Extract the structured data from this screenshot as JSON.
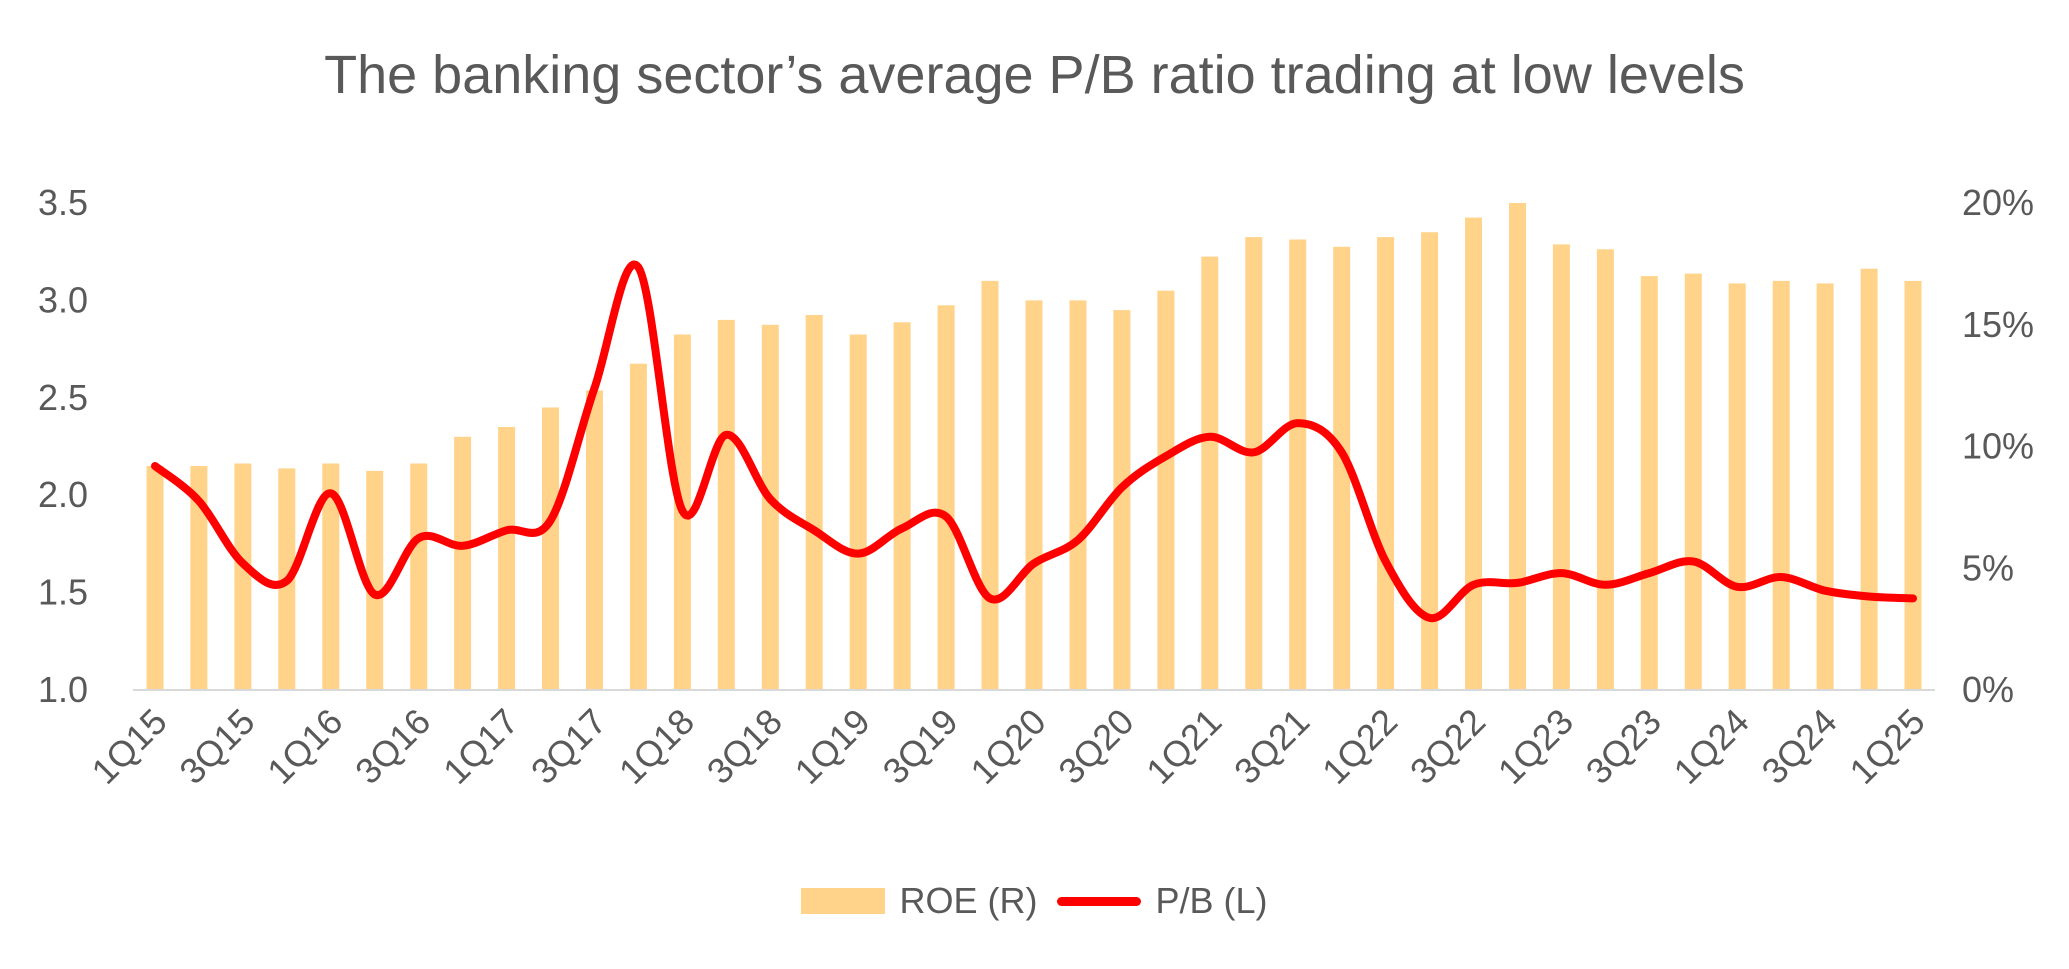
{
  "chart_data": {
    "type": "bar+line",
    "title": "The banking sector’s average P/B ratio trading at low levels",
    "categories": [
      "1Q15",
      "2Q15",
      "3Q15",
      "4Q15",
      "1Q16",
      "2Q16",
      "3Q16",
      "4Q16",
      "1Q17",
      "2Q17",
      "3Q17",
      "4Q17",
      "1Q18",
      "2Q18",
      "3Q18",
      "4Q18",
      "1Q19",
      "2Q19",
      "3Q19",
      "4Q19",
      "1Q20",
      "2Q20",
      "3Q20",
      "4Q20",
      "1Q21",
      "2Q21",
      "3Q21",
      "4Q21",
      "1Q22",
      "2Q22",
      "3Q22",
      "4Q22",
      "1Q23",
      "2Q23",
      "3Q23",
      "4Q23",
      "1Q24",
      "2Q24",
      "3Q24",
      "4Q24",
      "1Q25"
    ],
    "x_tick_labels": [
      "1Q15",
      "3Q15",
      "1Q16",
      "3Q16",
      "1Q17",
      "3Q17",
      "1Q18",
      "3Q18",
      "1Q19",
      "3Q19",
      "1Q20",
      "3Q20",
      "1Q21",
      "3Q21",
      "1Q22",
      "3Q22",
      "1Q23",
      "3Q23",
      "1Q24",
      "3Q24",
      "1Q25"
    ],
    "series": [
      {
        "name": "ROE (R)",
        "type": "bar",
        "axis": "right",
        "color": "#FFD38A",
        "values": [
          9.2,
          9.2,
          9.3,
          9.1,
          9.3,
          9.0,
          9.3,
          10.4,
          10.8,
          11.6,
          12.3,
          13.4,
          14.6,
          15.2,
          15.0,
          15.4,
          14.6,
          15.1,
          15.8,
          16.8,
          16.0,
          16.0,
          15.6,
          16.4,
          17.8,
          18.6,
          18.5,
          18.2,
          18.6,
          18.8,
          19.4,
          20.0,
          18.3,
          18.1,
          17.0,
          17.1,
          16.7,
          16.8,
          16.7,
          17.3,
          16.8
        ]
      },
      {
        "name": "P/B (L)",
        "type": "line",
        "axis": "left",
        "color": "#FF0000",
        "values": [
          2.15,
          1.97,
          1.65,
          1.56,
          2.01,
          1.49,
          1.78,
          1.74,
          1.82,
          1.87,
          2.55,
          3.17,
          1.92,
          2.31,
          1.98,
          1.82,
          1.7,
          1.83,
          1.89,
          1.47,
          1.65,
          1.77,
          2.04,
          2.2,
          2.3,
          2.22,
          2.37,
          2.22,
          1.66,
          1.37,
          1.54,
          1.55,
          1.6,
          1.54,
          1.6,
          1.66,
          1.53,
          1.58,
          1.51,
          1.48,
          1.47
        ]
      }
    ],
    "y_left": {
      "min": 1.0,
      "max": 3.5,
      "ticks": [
        "1.0",
        "1.5",
        "2.0",
        "2.5",
        "3.0",
        "3.5"
      ]
    },
    "y_right": {
      "min": 0,
      "max": 20,
      "ticks": [
        "0%",
        "5%",
        "10%",
        "15%",
        "20%"
      ]
    },
    "grid": false,
    "legend_position": "bottom"
  }
}
